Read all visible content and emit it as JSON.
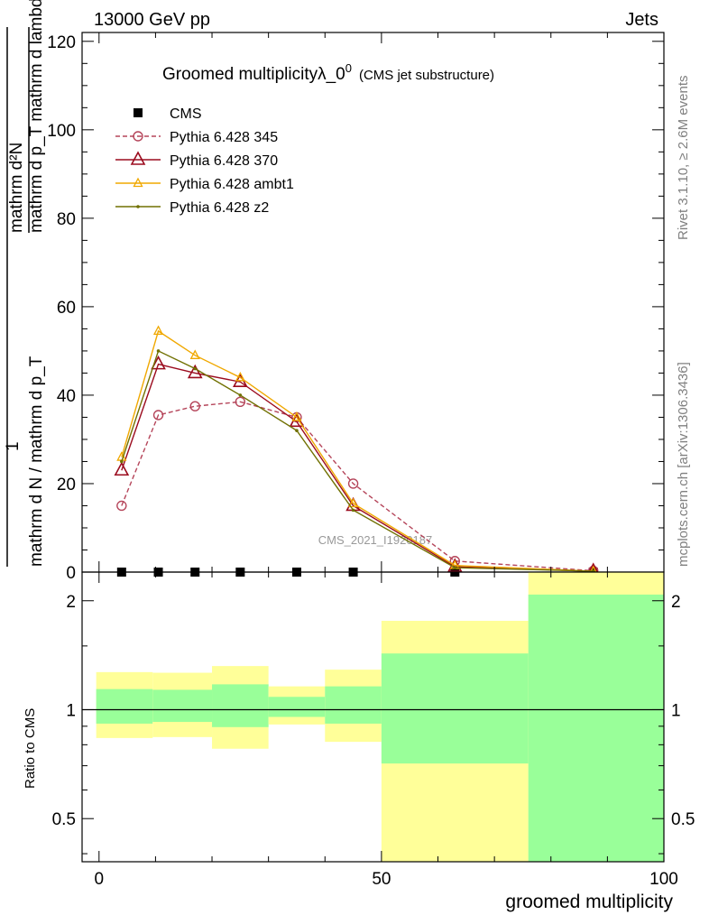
{
  "header": {
    "left": "13000 GeV pp",
    "right": "Jets"
  },
  "side_labels": {
    "rivet": "Rivet 3.1.10, ≥ 2.6M events",
    "source": "mcplots.cern.ch [arXiv:1306.3436]"
  },
  "chart_data": [
    {
      "type": "line",
      "title": "Groomed multiplicityλ_0",
      "title_superscript": "0",
      "subtitle": "(CMS jet substructure)",
      "watermark": "CMS_2021_I1920187",
      "xlabel": "groomed multiplicity",
      "ylabel": {
        "numerator": "mathrm d²N",
        "denominator": "mathrm d p_T mathrm d lambda",
        "prefix_numerator": "1",
        "prefix_denominator": "mathrm d N / mathrm d p_T"
      },
      "xlim": [
        -3,
        100
      ],
      "ylim": [
        0,
        122
      ],
      "x_ticks": [
        0,
        50,
        100
      ],
      "y_ticks": [
        0,
        20,
        40,
        60,
        80,
        100,
        120
      ],
      "x": [
        4,
        10.5,
        17,
        25,
        35,
        45,
        63,
        87.5
      ],
      "series": [
        {
          "name": "CMS",
          "marker": "square",
          "color": "#000000",
          "values": [
            0,
            0,
            0,
            0,
            0,
            0,
            0,
            0
          ]
        },
        {
          "name": "Pythia 6.428 345",
          "marker": "circle",
          "color": "#b5455a",
          "dashed": true,
          "values": [
            15,
            35.5,
            37.5,
            38.5,
            35,
            20,
            2.5,
            0.3
          ]
        },
        {
          "name": "Pythia 6.428 370",
          "marker": "triangle",
          "color": "#9b0b1e",
          "dashed": false,
          "values": [
            23,
            47,
            45,
            43,
            34,
            15,
            1.2,
            0.2
          ]
        },
        {
          "name": "Pythia 6.428 ambt1",
          "marker": "triangle-small",
          "color": "#f0a800",
          "dashed": false,
          "values": [
            26,
            54.5,
            49,
            44,
            35,
            15.5,
            1.5,
            0.2
          ]
        },
        {
          "name": "Pythia 6.428 z2",
          "marker": "dot",
          "color": "#707000",
          "dashed": false,
          "values": [
            25,
            50,
            46,
            40,
            32,
            14,
            1,
            0.2
          ]
        }
      ]
    },
    {
      "type": "bar",
      "ylabel": "Ratio to CMS",
      "xlim": [
        -3,
        100
      ],
      "ylim": [
        0.38,
        2.4
      ],
      "log_scale": true,
      "y_ticks": [
        0.5,
        1,
        2
      ],
      "bands": [
        {
          "x0": -0.5,
          "x1": 9.5,
          "yellow": [
            0.835,
            1.27
          ],
          "green": [
            0.915,
            1.14
          ]
        },
        {
          "x0": 9.5,
          "x1": 20,
          "yellow": [
            0.84,
            1.265
          ],
          "green": [
            0.925,
            1.135
          ]
        },
        {
          "x0": 20,
          "x1": 30,
          "yellow": [
            0.78,
            1.32
          ],
          "green": [
            0.895,
            1.175
          ]
        },
        {
          "x0": 30,
          "x1": 40,
          "yellow": [
            0.91,
            1.16
          ],
          "green": [
            0.955,
            1.085
          ]
        },
        {
          "x0": 40,
          "x1": 50,
          "yellow": [
            0.815,
            1.29
          ],
          "green": [
            0.915,
            1.16
          ]
        },
        {
          "x0": 50,
          "x1": 76,
          "yellow": [
            0.38,
            1.76
          ],
          "green": [
            0.71,
            1.43
          ]
        },
        {
          "x0": 76,
          "x1": 100,
          "yellow": [
            0.38,
            2.4
          ],
          "green": [
            0.38,
            2.08
          ]
        }
      ]
    }
  ]
}
